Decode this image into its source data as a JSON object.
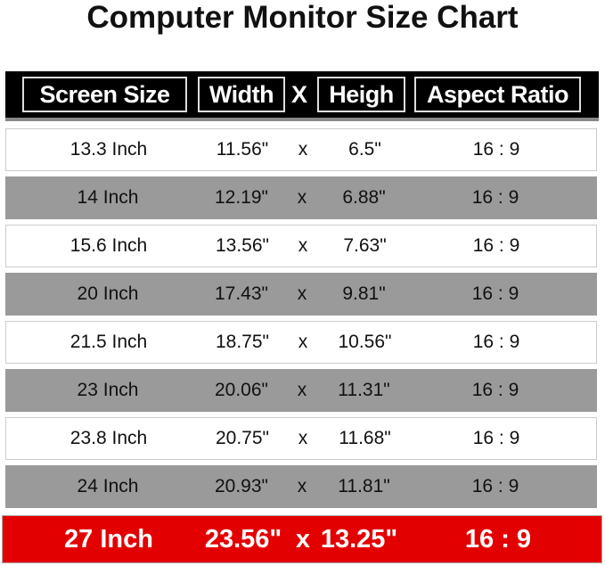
{
  "title": "Computer Monitor Size Chart",
  "chart_data": {
    "type": "table",
    "columns": [
      "Screen Size",
      "Width",
      "X",
      "Heigh",
      "Aspect Ratio"
    ],
    "rows": [
      {
        "size": "13.3 Inch",
        "width": "11.56\"",
        "x": "x",
        "height": "6.5\"",
        "ratio": "16 : 9"
      },
      {
        "size": "14 Inch",
        "width": "12.19\"",
        "x": "x",
        "height": "6.88\"",
        "ratio": "16 : 9"
      },
      {
        "size": "15.6 Inch",
        "width": "13.56\"",
        "x": "x",
        "height": "7.63\"",
        "ratio": "16 : 9"
      },
      {
        "size": "20 Inch",
        "width": "17.43\"",
        "x": "x",
        "height": "9.81\"",
        "ratio": "16 : 9"
      },
      {
        "size": "21.5 Inch",
        "width": "18.75\"",
        "x": "x",
        "height": "10.56\"",
        "ratio": "16 : 9"
      },
      {
        "size": "23 Inch",
        "width": "20.06\"",
        "x": "x",
        "height": "11.31\"",
        "ratio": "16 : 9"
      },
      {
        "size": "23.8 Inch",
        "width": "20.75\"",
        "x": "x",
        "height": "11.68\"",
        "ratio": "16 : 9"
      },
      {
        "size": "24 Inch",
        "width": "20.93\"",
        "x": "x",
        "height": "11.81\"",
        "ratio": "16 : 9"
      },
      {
        "size": "27 Inch",
        "width": "23.56\"",
        "x": "x",
        "height": "13.25\"",
        "ratio": "16 : 9",
        "highlighted": true
      }
    ],
    "colors": {
      "header": "#000000",
      "row_white": "#ffffff",
      "row_gray": "#9a9a9a",
      "highlight": "#e30000"
    }
  }
}
